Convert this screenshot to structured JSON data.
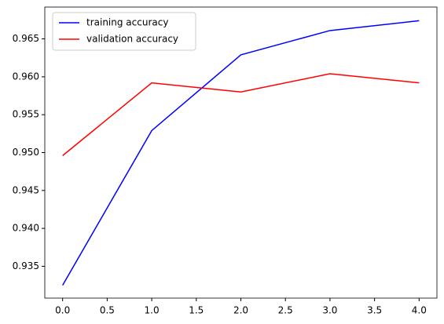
{
  "chart_data": {
    "type": "line",
    "x": [
      0,
      1,
      2,
      3,
      4
    ],
    "series": [
      {
        "name": "training accuracy",
        "color": "#0000ff",
        "values": [
          0.9325,
          0.9529,
          0.9629,
          0.9661,
          0.9674
        ]
      },
      {
        "name": "validation accuracy",
        "color": "#ff0000",
        "values": [
          0.9496,
          0.9592,
          0.958,
          0.9604,
          0.9592
        ]
      }
    ],
    "xlim": [
      -0.2,
      4.2
    ],
    "xticks": [
      {
        "value": 0,
        "label": "0.0"
      },
      {
        "value": 0.5,
        "label": "0.5"
      },
      {
        "value": 1,
        "label": "1.0"
      },
      {
        "value": 1.5,
        "label": "1.5"
      },
      {
        "value": 2,
        "label": "2.0"
      },
      {
        "value": 2.5,
        "label": "2.5"
      },
      {
        "value": 3,
        "label": "3.0"
      },
      {
        "value": 3.5,
        "label": "3.5"
      },
      {
        "value": 4,
        "label": "4.0"
      }
    ],
    "ylim": [
      0.9308,
      0.9692
    ],
    "yticks": [
      0.935,
      {
        "value": 0.94,
        "label": "0.940"
      },
      0.945,
      {
        "value": 0.95,
        "label": "0.950"
      },
      0.955,
      {
        "value": 0.96,
        "label": "0.960"
      },
      0.965
    ],
    "grid": false,
    "legend": "upper-left"
  }
}
